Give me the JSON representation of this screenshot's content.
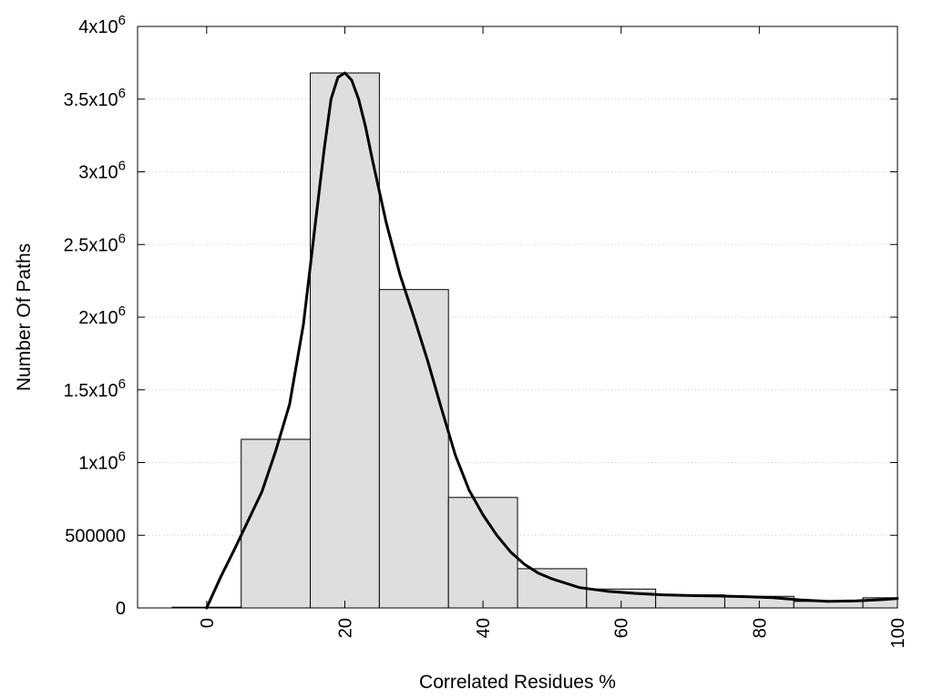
{
  "chart_data": {
    "type": "bar",
    "xlabel": "Correlated Residues %",
    "ylabel": "Number Of Paths",
    "xlim": [
      -10,
      100
    ],
    "ylim": [
      0,
      4000000
    ],
    "grid": "horizontal",
    "x_ticks": [
      {
        "value": 0,
        "label": "0"
      },
      {
        "value": 20,
        "label": "20"
      },
      {
        "value": 40,
        "label": "40"
      },
      {
        "value": 60,
        "label": "60"
      },
      {
        "value": 80,
        "label": "80"
      },
      {
        "value": 100,
        "label": "100"
      }
    ],
    "y_ticks": [
      {
        "value": 0,
        "base": "0",
        "exp": ""
      },
      {
        "value": 500000,
        "base": "500000",
        "exp": ""
      },
      {
        "value": 1000000,
        "base": "1x10",
        "exp": "6"
      },
      {
        "value": 1500000,
        "base": "1.5x10",
        "exp": "6"
      },
      {
        "value": 2000000,
        "base": "2x10",
        "exp": "6"
      },
      {
        "value": 2500000,
        "base": "2.5x10",
        "exp": "6"
      },
      {
        "value": 3000000,
        "base": "3x10",
        "exp": "6"
      },
      {
        "value": 3500000,
        "base": "3.5x10",
        "exp": "6"
      },
      {
        "value": 4000000,
        "base": "4x10",
        "exp": "6"
      }
    ],
    "bins": [
      {
        "x0": -5,
        "x1": 5,
        "value": 5000
      },
      {
        "x0": 5,
        "x1": 15,
        "value": 1160000
      },
      {
        "x0": 15,
        "x1": 25,
        "value": 3680000
      },
      {
        "x0": 25,
        "x1": 35,
        "value": 2190000
      },
      {
        "x0": 35,
        "x1": 45,
        "value": 760000
      },
      {
        "x0": 45,
        "x1": 55,
        "value": 270000
      },
      {
        "x0": 55,
        "x1": 65,
        "value": 130000
      },
      {
        "x0": 65,
        "x1": 75,
        "value": 90000
      },
      {
        "x0": 75,
        "x1": 85,
        "value": 80000
      },
      {
        "x0": 85,
        "x1": 95,
        "value": 45000
      },
      {
        "x0": 95,
        "x1": 100,
        "value": 70000
      }
    ],
    "curve": {
      "type": "line",
      "x": [
        0,
        2,
        4,
        6,
        8,
        10,
        12,
        14,
        16,
        17,
        18,
        19,
        20,
        21,
        22,
        23,
        24,
        26,
        28,
        30,
        32,
        34,
        36,
        38,
        40,
        42,
        44,
        46,
        48,
        50,
        54,
        58,
        62,
        66,
        70,
        74,
        78,
        82,
        86,
        90,
        94,
        98,
        100
      ],
      "y": [
        0,
        210000,
        400000,
        600000,
        800000,
        1080000,
        1400000,
        1950000,
        2750000,
        3150000,
        3500000,
        3650000,
        3680000,
        3630000,
        3500000,
        3310000,
        3080000,
        2650000,
        2290000,
        2000000,
        1700000,
        1370000,
        1050000,
        810000,
        640000,
        500000,
        385000,
        300000,
        240000,
        200000,
        140000,
        115000,
        100000,
        90000,
        85000,
        82000,
        78000,
        70000,
        55000,
        45000,
        48000,
        58000,
        65000
      ]
    }
  }
}
